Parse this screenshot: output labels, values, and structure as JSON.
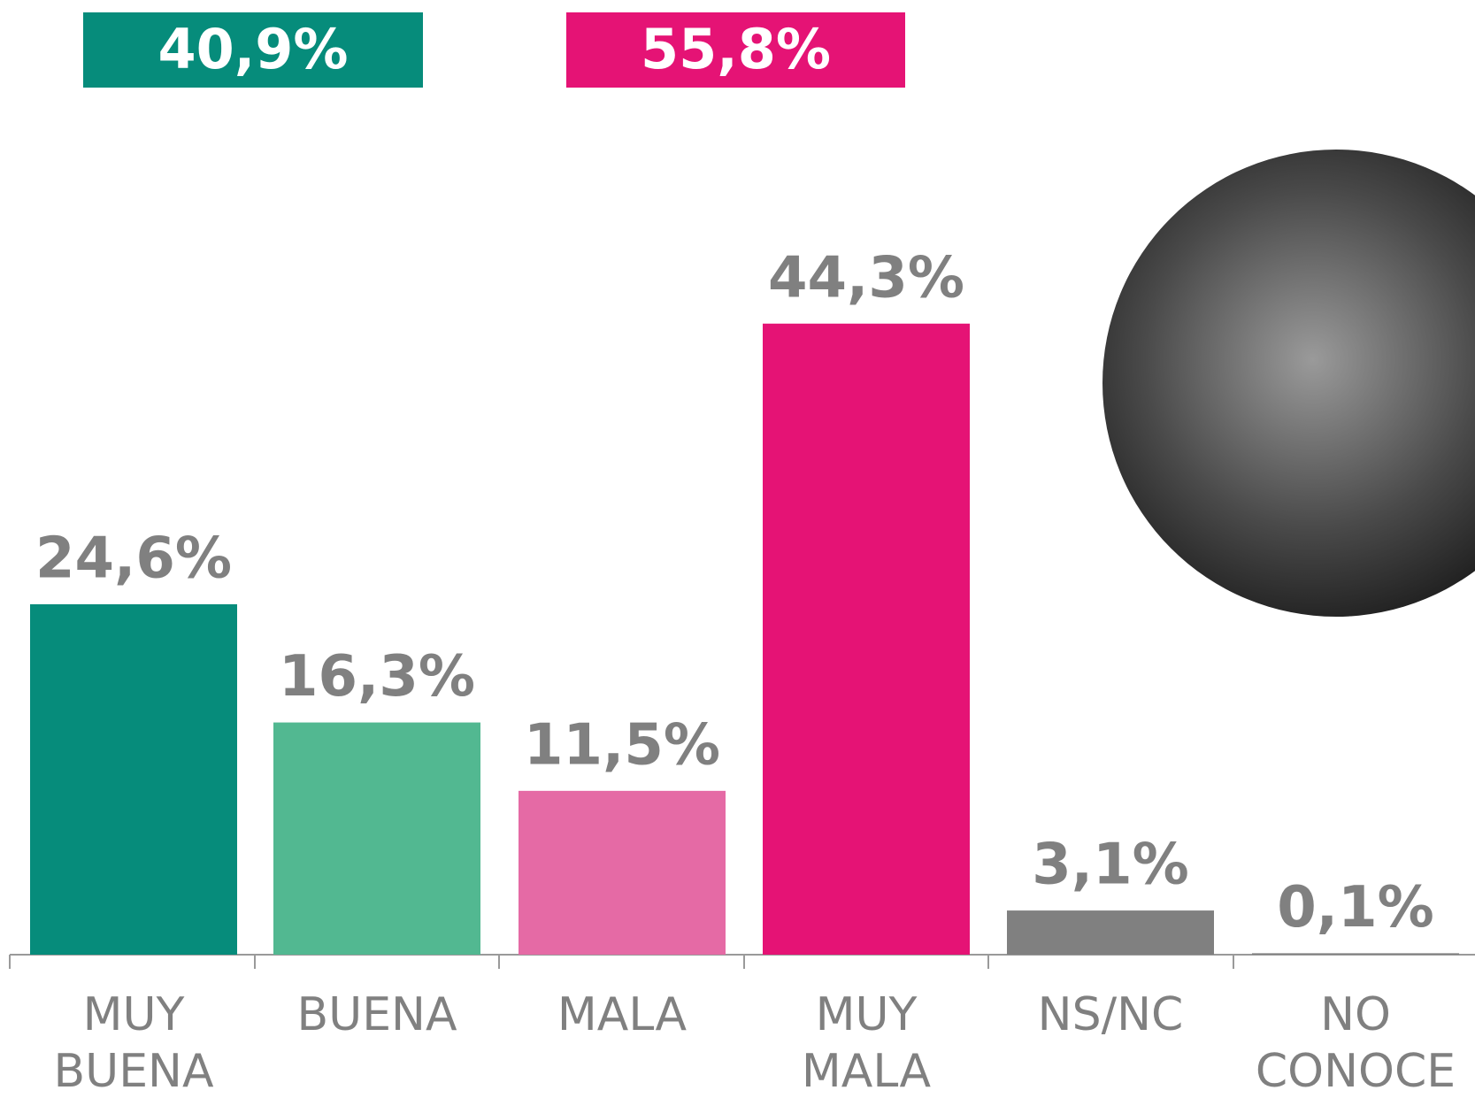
{
  "chart_data": {
    "type": "bar",
    "summary": [
      {
        "label": "40,9%",
        "value": 40.9,
        "color": "#068c7b"
      },
      {
        "label": "55,8%",
        "value": 55.8,
        "color": "#e51375"
      }
    ],
    "categories": [
      "MUY BUENA",
      "BUENA",
      "MALA",
      "MUY MALA",
      "NS/NC",
      "NO CONOCE"
    ],
    "values": [
      24.6,
      16.3,
      11.5,
      44.3,
      3.1,
      0.1
    ],
    "value_labels": [
      "24,6%",
      "16,3%",
      "11,5%",
      "44,3%",
      "3,1%",
      "0,1%"
    ],
    "colors": [
      "#068c7b",
      "#52b891",
      "#e56aa5",
      "#e51375",
      "#808080",
      "#808080"
    ]
  }
}
